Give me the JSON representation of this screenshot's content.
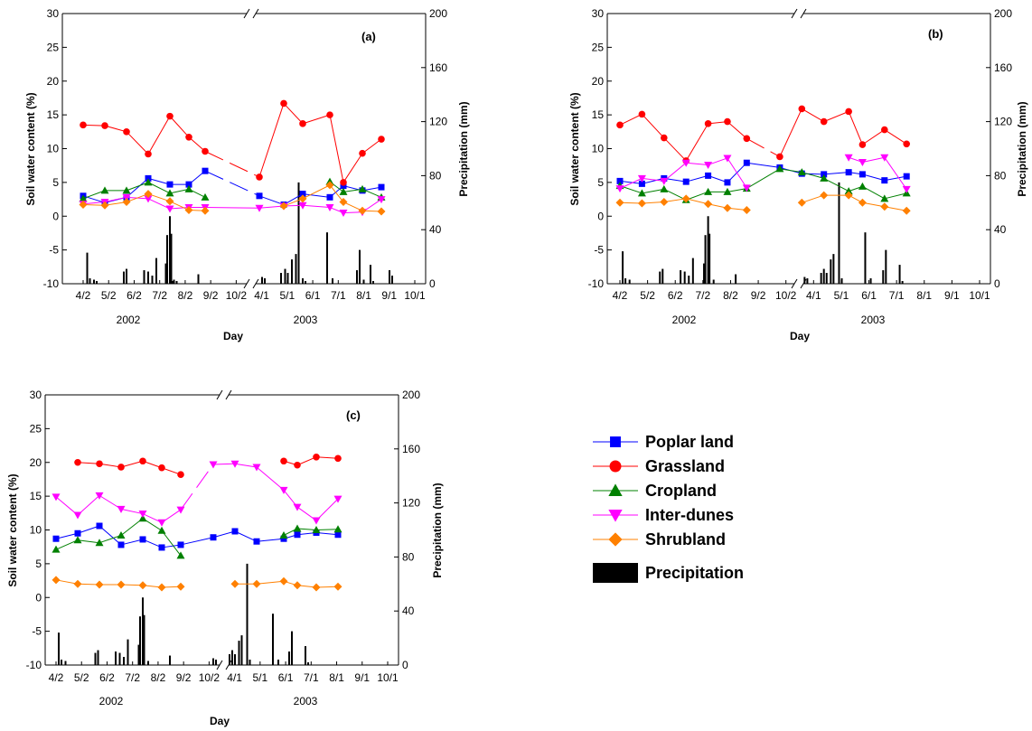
{
  "colors": {
    "poplar": "#0000ff",
    "grassland": "#ff0000",
    "cropland": "#008000",
    "interdunes": "#ff00ff",
    "shrubland": "#ff8000",
    "precip": "#000000"
  },
  "legend": [
    {
      "key": "poplar",
      "label": "Poplar land",
      "marker": "square"
    },
    {
      "key": "grassland",
      "label": "Grassland",
      "marker": "circle"
    },
    {
      "key": "cropland",
      "label": "Cropland",
      "marker": "triangle-up"
    },
    {
      "key": "interdunes",
      "label": "Inter-dunes",
      "marker": "triangle-down"
    },
    {
      "key": "shrubland",
      "label": "Shrubland",
      "marker": "diamond"
    },
    {
      "key": "precip",
      "label": "Precipitation",
      "marker": "bar"
    }
  ],
  "chart_data": [
    {
      "type": "line",
      "panel": "(a)",
      "xlabel": "Day",
      "ylabel": "Soil water content (%)",
      "y2label": "Precipitation (mm)",
      "ylim": [
        -10,
        30
      ],
      "y2lim": [
        0,
        200
      ],
      "yticks": [
        -10,
        -5,
        0,
        5,
        10,
        15,
        20,
        25,
        30
      ],
      "y2ticks": [
        0,
        40,
        80,
        120,
        160,
        200
      ],
      "xticks": [
        "4/2",
        "5/2",
        "6/2",
        "7/2",
        "8/2",
        "9/2",
        "10/2",
        "4/1",
        "5/1",
        "6/1",
        "7/1",
        "8/1",
        "9/1",
        "10/1"
      ],
      "years": [
        "2002",
        "2003"
      ],
      "x": [
        0,
        0.8,
        1.6,
        2.4,
        3.2,
        3.9,
        4.5,
        6.5,
        7.4,
        8.1,
        9.1,
        9.6,
        10.3,
        11.0
      ],
      "series": [
        {
          "key": "poplar",
          "name": "Poplar land",
          "values": [
            3.0,
            2.0,
            2.8,
            5.6,
            4.7,
            4.7,
            6.7,
            3.0,
            1.7,
            3.3,
            2.8,
            4.5,
            3.8,
            4.3
          ]
        },
        {
          "key": "grassland",
          "name": "Grassland",
          "values": [
            13.5,
            13.4,
            12.5,
            9.2,
            14.8,
            11.7,
            9.6,
            5.8,
            16.7,
            13.7,
            15.0,
            5.0,
            9.3,
            11.4
          ]
        },
        {
          "key": "cropland",
          "name": "Cropland",
          "values": [
            2.6,
            3.8,
            3.8,
            5.0,
            3.4,
            4.0,
            2.8,
            null,
            null,
            null,
            5.1,
            3.6,
            4.0,
            2.8
          ]
        },
        {
          "key": "interdunes",
          "name": "Inter-dunes",
          "values": [
            1.8,
            2.1,
            2.8,
            2.6,
            1.1,
            1.3,
            1.3,
            1.2,
            1.5,
            1.6,
            1.3,
            0.5,
            0.6,
            2.5
          ]
        },
        {
          "key": "shrubland",
          "name": "Shrubland",
          "values": [
            1.7,
            1.6,
            2.1,
            3.3,
            2.2,
            0.9,
            0.8,
            null,
            1.5,
            2.6,
            4.6,
            2.1,
            0.8,
            0.7
          ]
        }
      ],
      "line_breaks": {
        "grassland": [
          6,
          7
        ],
        "poplar": [
          6,
          7
        ]
      },
      "precipitation": {
        "days": [
          0.15,
          0.25,
          0.4,
          0.5,
          1.5,
          1.6,
          2.25,
          2.4,
          2.55,
          2.7,
          3.05,
          3.1,
          3.2,
          3.25,
          3.3,
          3.35,
          3.45,
          4.25,
          6.6,
          6.7,
          7.3,
          7.45,
          7.55,
          7.7,
          7.85,
          7.95,
          8.1,
          8.2,
          9.0,
          9.2,
          10.1,
          10.2,
          10.35,
          10.6,
          10.7,
          11.3,
          11.4
        ],
        "values": [
          23,
          4,
          3,
          2,
          9,
          11,
          10,
          9,
          6,
          19,
          15,
          36,
          50,
          37,
          2,
          3,
          2,
          7,
          5,
          4,
          8,
          11,
          8,
          18,
          22,
          75,
          4,
          2,
          38,
          4,
          10,
          25,
          3,
          14,
          2,
          10,
          6
        ]
      }
    },
    {
      "type": "line",
      "panel": "(b)",
      "xlabel": "Day",
      "ylabel": "Soil water content (%)",
      "y2label": "Precipitation (mm)",
      "ylim": [
        -10,
        30
      ],
      "y2lim": [
        0,
        200
      ],
      "yticks": [
        -10,
        -5,
        0,
        5,
        10,
        15,
        20,
        25,
        30
      ],
      "y2ticks": [
        0,
        40,
        80,
        120,
        160,
        200
      ],
      "xticks": [
        "4/2",
        "5/2",
        "6/2",
        "7/2",
        "8/2",
        "9/2",
        "10/2",
        "4/1",
        "5/1",
        "6/1",
        "7/1",
        "8/1",
        "9/1",
        "10/1"
      ],
      "years": [
        "2002",
        "2003"
      ],
      "x": [
        0,
        0.8,
        1.6,
        2.4,
        3.2,
        3.9,
        4.6,
        5.8,
        6.6,
        7.4,
        8.3,
        8.8,
        9.6,
        10.4
      ],
      "series": [
        {
          "key": "poplar",
          "name": "Poplar land",
          "values": [
            5.2,
            4.8,
            5.6,
            5.1,
            6.0,
            5.0,
            7.9,
            7.2,
            6.3,
            6.2,
            6.5,
            6.2,
            5.3,
            5.9
          ]
        },
        {
          "key": "grassland",
          "name": "Grassland",
          "values": [
            13.5,
            15.1,
            11.6,
            8.2,
            13.7,
            14.0,
            11.5,
            8.8,
            15.9,
            14.0,
            15.5,
            10.6,
            12.8,
            10.7
          ]
        },
        {
          "key": "cropland",
          "name": "Cropland",
          "values": [
            4.5,
            3.4,
            4.0,
            2.4,
            3.6,
            3.6,
            4.1,
            7.0,
            6.5,
            5.6,
            3.7,
            4.4,
            2.6,
            3.4
          ]
        },
        {
          "key": "interdunes",
          "name": "Inter-dunes",
          "values": [
            4.1,
            5.6,
            5.2,
            7.9,
            7.6,
            8.6,
            4.2,
            null,
            null,
            null,
            8.7,
            8.0,
            8.7,
            4.0
          ]
        },
        {
          "key": "shrubland",
          "name": "Shrubland",
          "values": [
            2.0,
            1.9,
            2.1,
            2.6,
            1.8,
            1.2,
            0.9,
            null,
            2.0,
            3.1,
            3.1,
            2.0,
            1.4,
            0.8
          ]
        }
      ],
      "line_breaks": {
        "grassland": [
          6,
          7
        ]
      },
      "precipitation": {
        "days": [
          0.1,
          0.2,
          0.35,
          1.45,
          1.55,
          2.2,
          2.35,
          2.5,
          2.65,
          3.05,
          3.1,
          3.2,
          3.25,
          3.4,
          4.2,
          6.7,
          6.8,
          7.3,
          7.4,
          7.5,
          7.65,
          7.75,
          7.95,
          8.05,
          8.9,
          9.1,
          9.55,
          9.65,
          10.15,
          10.25
        ],
        "values": [
          24,
          4,
          3,
          9,
          11,
          10,
          9,
          6,
          19,
          15,
          36,
          50,
          37,
          3,
          7,
          5,
          4,
          8,
          11,
          8,
          18,
          22,
          75,
          4,
          38,
          4,
          10,
          25,
          14,
          2
        ]
      }
    },
    {
      "type": "line",
      "panel": "(c)",
      "xlabel": "Day",
      "ylabel": "Soil water content (%)",
      "y2label": "Precipitation (mm)",
      "ylim": [
        -10,
        30
      ],
      "y2lim": [
        0,
        200
      ],
      "yticks": [
        -10,
        -5,
        0,
        5,
        10,
        15,
        20,
        25,
        30
      ],
      "y2ticks": [
        0,
        40,
        80,
        120,
        160,
        200
      ],
      "xticks": [
        "4/2",
        "5/2",
        "6/2",
        "7/2",
        "8/2",
        "9/2",
        "10/2",
        "4/1",
        "5/1",
        "6/1",
        "7/1",
        "8/1",
        "9/1",
        "10/1"
      ],
      "years": [
        "2002",
        "2003"
      ],
      "x": [
        0,
        0.8,
        1.6,
        2.4,
        3.2,
        3.9,
        4.6,
        5.8,
        6.6,
        7.4,
        8.4,
        8.9,
        9.6,
        10.4
      ],
      "series": [
        {
          "key": "poplar",
          "name": "Poplar land",
          "values": [
            8.7,
            9.5,
            10.6,
            7.8,
            8.6,
            7.4,
            7.8,
            8.9,
            9.8,
            8.3,
            8.7,
            9.3,
            9.6,
            9.3
          ]
        },
        {
          "key": "grassland",
          "name": "Grassland",
          "values": [
            null,
            20.0,
            19.8,
            19.3,
            20.2,
            19.2,
            18.2,
            null,
            null,
            null,
            20.2,
            19.6,
            20.8,
            20.6
          ]
        },
        {
          "key": "cropland",
          "name": "Cropland",
          "values": [
            7.1,
            8.5,
            8.1,
            9.2,
            11.7,
            9.9,
            6.2,
            null,
            null,
            null,
            9.2,
            10.2,
            10.0,
            10.1
          ]
        },
        {
          "key": "interdunes",
          "name": "Inter-dunes",
          "values": [
            14.9,
            12.2,
            15.1,
            13.1,
            12.4,
            11.1,
            13.0,
            19.7,
            19.8,
            19.3,
            15.9,
            13.4,
            11.4,
            14.6
          ]
        },
        {
          "key": "shrubland",
          "name": "Shrubland",
          "values": [
            2.6,
            2.0,
            1.9,
            1.9,
            1.8,
            1.5,
            1.6,
            null,
            2.0,
            2.0,
            2.4,
            1.8,
            1.5,
            1.6
          ]
        }
      ],
      "line_breaks": {
        "interdunes": [
          6,
          7
        ]
      },
      "precipitation": {
        "days": [
          0.1,
          0.2,
          0.35,
          1.45,
          1.55,
          2.2,
          2.35,
          2.5,
          2.65,
          3.05,
          3.1,
          3.2,
          3.25,
          3.4,
          4.2,
          5.8,
          5.9,
          6.4,
          6.5,
          6.6,
          6.75,
          6.85,
          7.05,
          7.15,
          8.0,
          8.2,
          8.6,
          8.7,
          9.2,
          9.3
        ],
        "values": [
          24,
          4,
          3,
          9,
          11,
          10,
          9,
          6,
          19,
          15,
          36,
          50,
          37,
          3,
          7,
          5,
          4,
          8,
          11,
          8,
          18,
          22,
          75,
          4,
          38,
          4,
          10,
          25,
          14,
          2
        ]
      }
    }
  ]
}
